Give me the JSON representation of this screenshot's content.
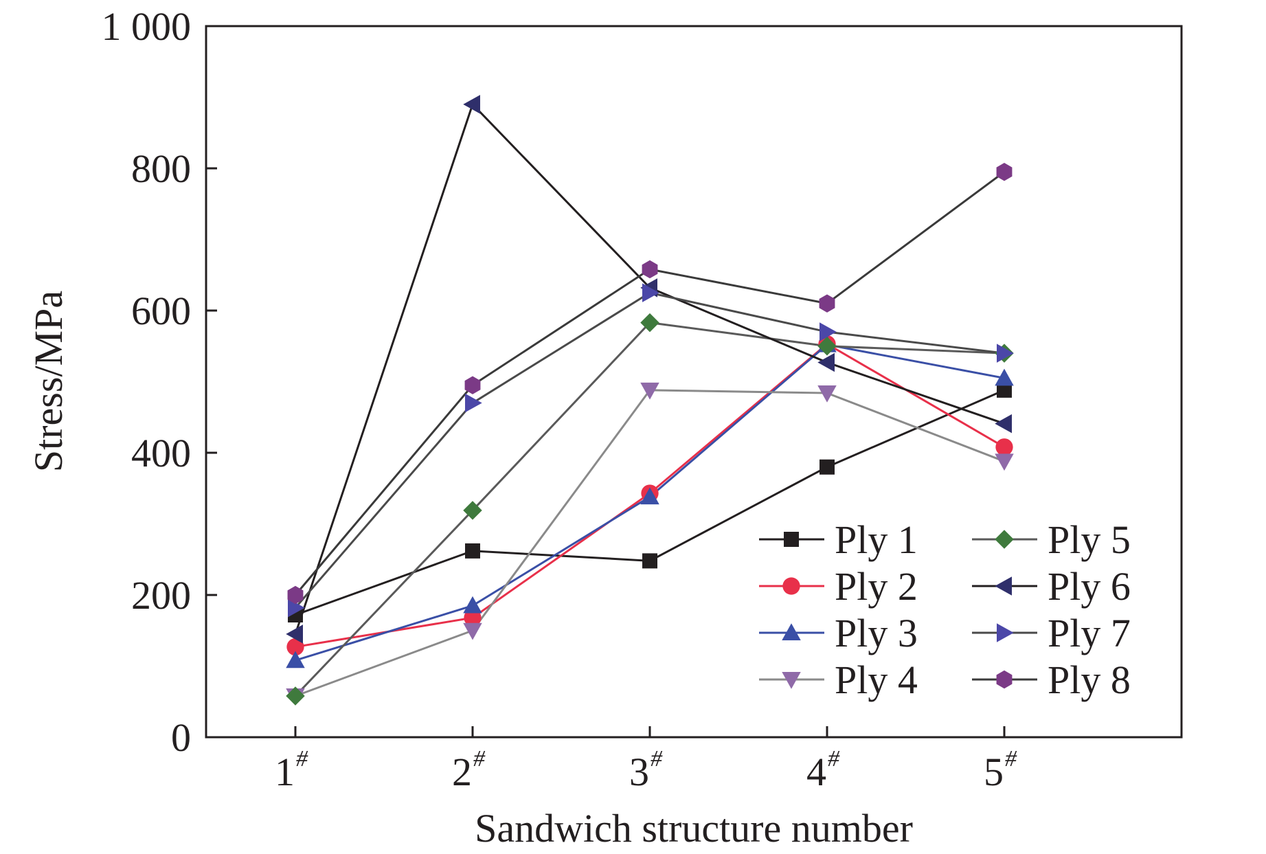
{
  "chart_data": {
    "type": "line",
    "xlabel": "Sandwich structure number",
    "ylabel": "Stress/MPa",
    "categories": [
      "1",
      "2",
      "3",
      "4",
      "5"
    ],
    "category_superscript": "#",
    "ylim": [
      0,
      1000
    ],
    "yticks": [
      0,
      200,
      400,
      600,
      800,
      1000
    ],
    "ytick_labels": [
      "0",
      "200",
      "400",
      "600",
      "800",
      "1 000"
    ],
    "grid": false,
    "legend_position": "bottom-right",
    "series": [
      {
        "name": "Ply 1",
        "color": "#231f20",
        "marker": "square",
        "values": [
          172,
          262,
          248,
          380,
          488
        ]
      },
      {
        "name": "Ply 2",
        "color": "#e8304a",
        "marker": "circle",
        "values": [
          127,
          168,
          343,
          553,
          408
        ]
      },
      {
        "name": "Ply 3",
        "color": "#3a4fa6",
        "marker": "triangle-up",
        "values": [
          108,
          185,
          338,
          552,
          505
        ]
      },
      {
        "name": "Ply 4",
        "color": "#8f6aa8",
        "marker": "triangle-down",
        "values": [
          58,
          150,
          488,
          484,
          388
        ]
      },
      {
        "name": "Ply 5",
        "color": "#3f7a3d",
        "marker": "diamond",
        "values": [
          58,
          319,
          583,
          550,
          540
        ]
      },
      {
        "name": "Ply 6",
        "color": "#2f2f6b",
        "marker": "triangle-left",
        "values": [
          145,
          890,
          632,
          527,
          441
        ]
      },
      {
        "name": "Ply 7",
        "color": "#4b47a8",
        "marker": "triangle-right",
        "values": [
          182,
          470,
          625,
          570,
          540
        ]
      },
      {
        "name": "Ply 8",
        "color": "#7b3a86",
        "marker": "hexagon",
        "values": [
          200,
          495,
          658,
          610,
          795
        ]
      }
    ],
    "line_colors": {
      "odd": "#231f20",
      "ply2": "#e8304a",
      "ply3": "#3a4fa6",
      "ply4": "#8a8a8a",
      "ply5": "#555555",
      "ply6": "#231f20",
      "ply7": "#555555",
      "ply8": "#3a3a3a"
    }
  }
}
